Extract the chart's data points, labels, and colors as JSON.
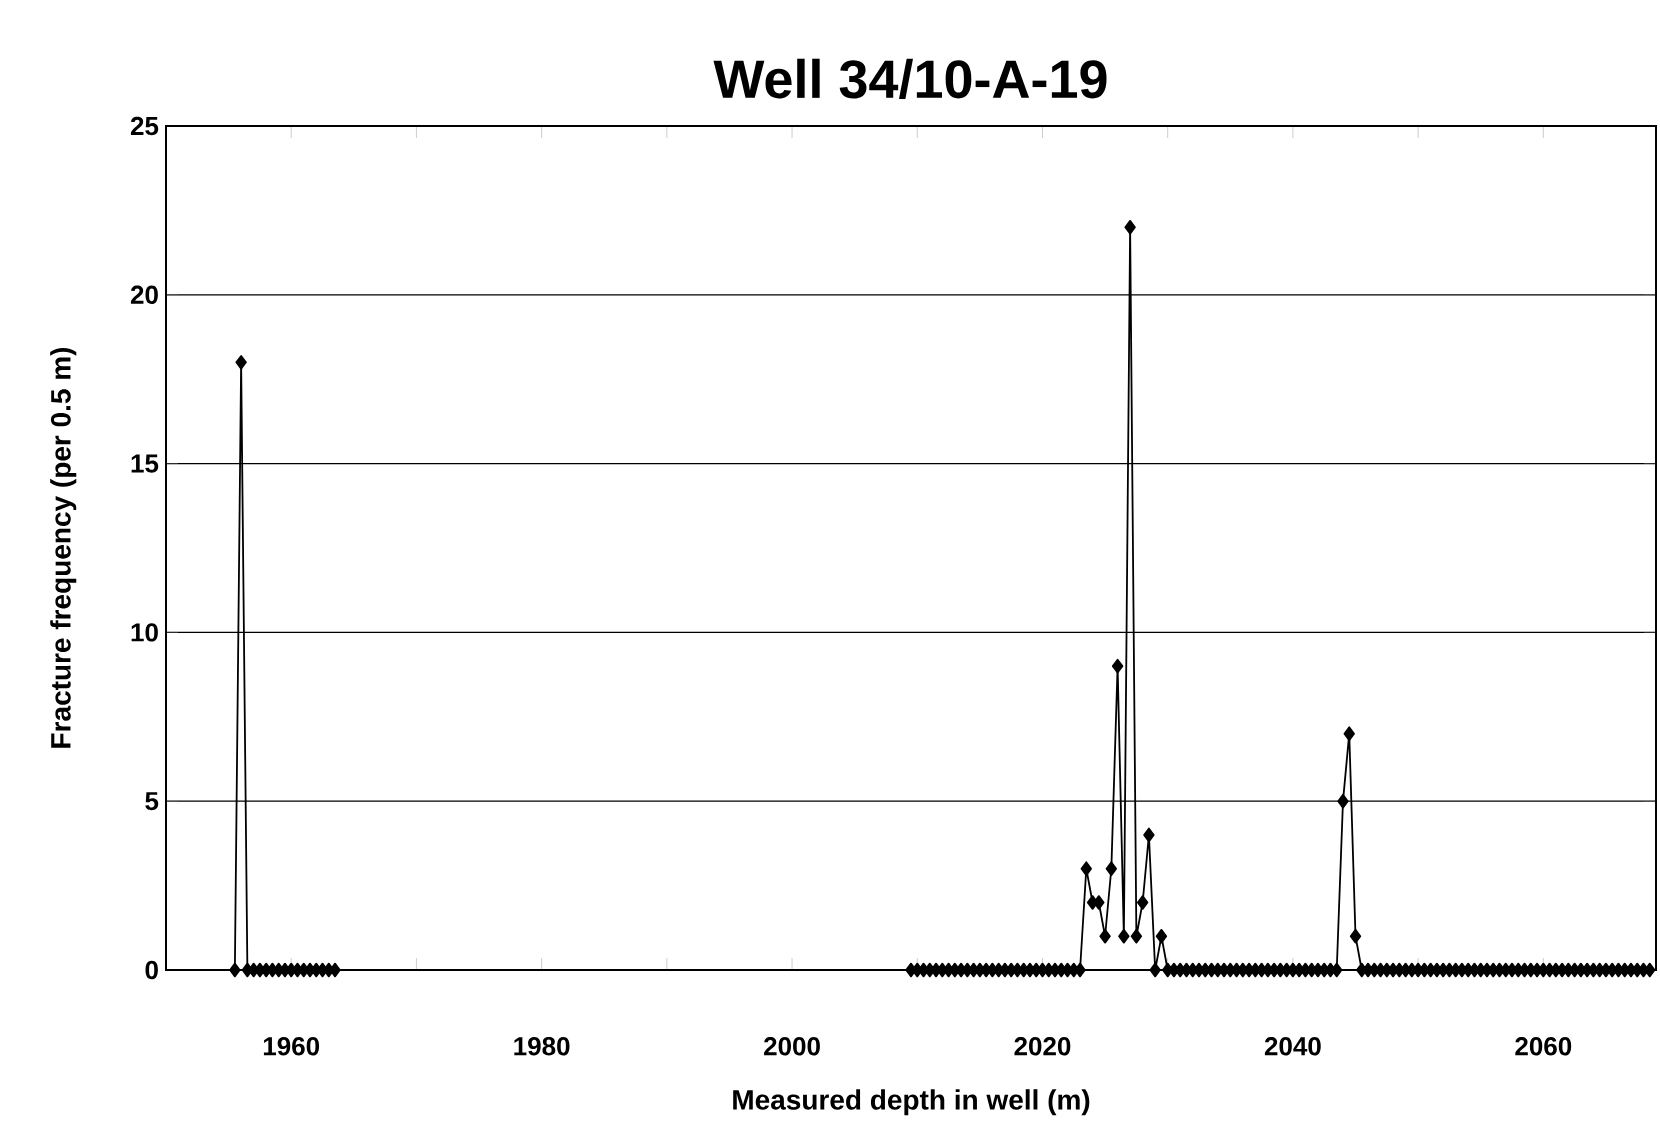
{
  "chart_data": {
    "type": "line",
    "title": "Well 34/10-A-19",
    "xlabel": "Measured depth in well (m)",
    "ylabel": "Fracture frequency (per 0.5 m)",
    "xlim": [
      1950,
      2069
    ],
    "ylim": [
      0,
      25
    ],
    "xticks": [
      {
        "value": 1950,
        "label": null
      },
      1960,
      {
        "value": 1970,
        "label": null
      },
      1980,
      {
        "value": 1990,
        "label": null
      },
      2000,
      {
        "value": 2010,
        "label": null
      },
      2020,
      {
        "value": 2030,
        "label": null
      },
      2040,
      {
        "value": 2050,
        "label": null
      },
      2060
    ],
    "yticks": [
      0,
      5,
      10,
      15,
      20,
      25
    ],
    "grid": "y",
    "marker": "diamond",
    "line_style": "solid",
    "series": [
      {
        "color": "#000000",
        "x": [
          1955.5,
          1956,
          1956.5,
          1957,
          1957.5,
          1958,
          1958.5,
          1959,
          1959.5,
          1960,
          1960.5,
          1961,
          1961.5,
          1962,
          1962.5,
          1963,
          1963.5,
          2009.5,
          2010,
          2010.5,
          2011,
          2011.5,
          2012,
          2012.5,
          2013,
          2013.5,
          2014,
          2014.5,
          2015,
          2015.5,
          2016,
          2016.5,
          2017,
          2017.5,
          2018,
          2018.5,
          2019,
          2019.5,
          2020,
          2020.5,
          2021,
          2021.5,
          2022,
          2022.5,
          2023,
          2023.5,
          2024,
          2024.5,
          2025,
          2025.5,
          2026,
          2026.5,
          2027,
          2027.5,
          2028,
          2028.5,
          2029,
          2029.5,
          2030,
          2030.5,
          2031,
          2031.5,
          2032,
          2032.5,
          2033,
          2033.5,
          2034,
          2034.5,
          2035,
          2035.5,
          2036,
          2036.5,
          2037,
          2037.5,
          2038,
          2038.5,
          2039,
          2039.5,
          2040,
          2040.5,
          2041,
          2041.5,
          2042,
          2042.5,
          2043,
          2043.5,
          2044,
          2044.5,
          2045,
          2045.5,
          2046,
          2046.5,
          2047,
          2047.5,
          2048,
          2048.5,
          2049,
          2049.5,
          2050,
          2050.5,
          2051,
          2051.5,
          2052,
          2052.5,
          2053,
          2053.5,
          2054,
          2054.5,
          2055,
          2055.5,
          2056,
          2056.5,
          2057,
          2057.5,
          2058,
          2058.5,
          2059,
          2059.5,
          2060,
          2060.5,
          2061,
          2061.5,
          2062,
          2062.5,
          2063,
          2063.5,
          2064,
          2064.5,
          2065,
          2065.5,
          2066,
          2066.5,
          2067,
          2067.5,
          2068,
          2068.5
        ],
        "values": [
          0,
          18,
          0,
          0,
          0,
          0,
          0,
          0,
          0,
          0,
          0,
          0,
          0,
          0,
          0,
          0,
          0,
          0,
          0,
          0,
          0,
          0,
          0,
          0,
          0,
          0,
          0,
          0,
          0,
          0,
          0,
          0,
          0,
          0,
          0,
          0,
          0,
          0,
          0,
          0,
          0,
          0,
          0,
          0,
          0,
          3,
          2,
          2,
          1,
          3,
          9,
          1,
          22,
          1,
          2,
          4,
          0,
          1,
          0,
          0,
          0,
          0,
          0,
          0,
          0,
          0,
          0,
          0,
          0,
          0,
          0,
          0,
          0,
          0,
          0,
          0,
          0,
          0,
          0,
          0,
          0,
          0,
          0,
          0,
          0,
          0,
          5,
          7,
          1,
          0,
          0,
          0,
          0,
          0,
          0,
          0,
          0,
          0,
          0,
          0,
          0,
          0,
          0,
          0,
          0,
          0,
          0,
          0,
          0,
          0,
          0,
          0,
          0,
          0,
          0,
          0,
          0,
          0,
          0,
          0,
          0,
          0,
          0,
          0,
          0,
          0,
          0,
          0,
          0,
          0,
          0,
          0,
          0,
          0,
          0,
          0
        ]
      }
    ]
  }
}
